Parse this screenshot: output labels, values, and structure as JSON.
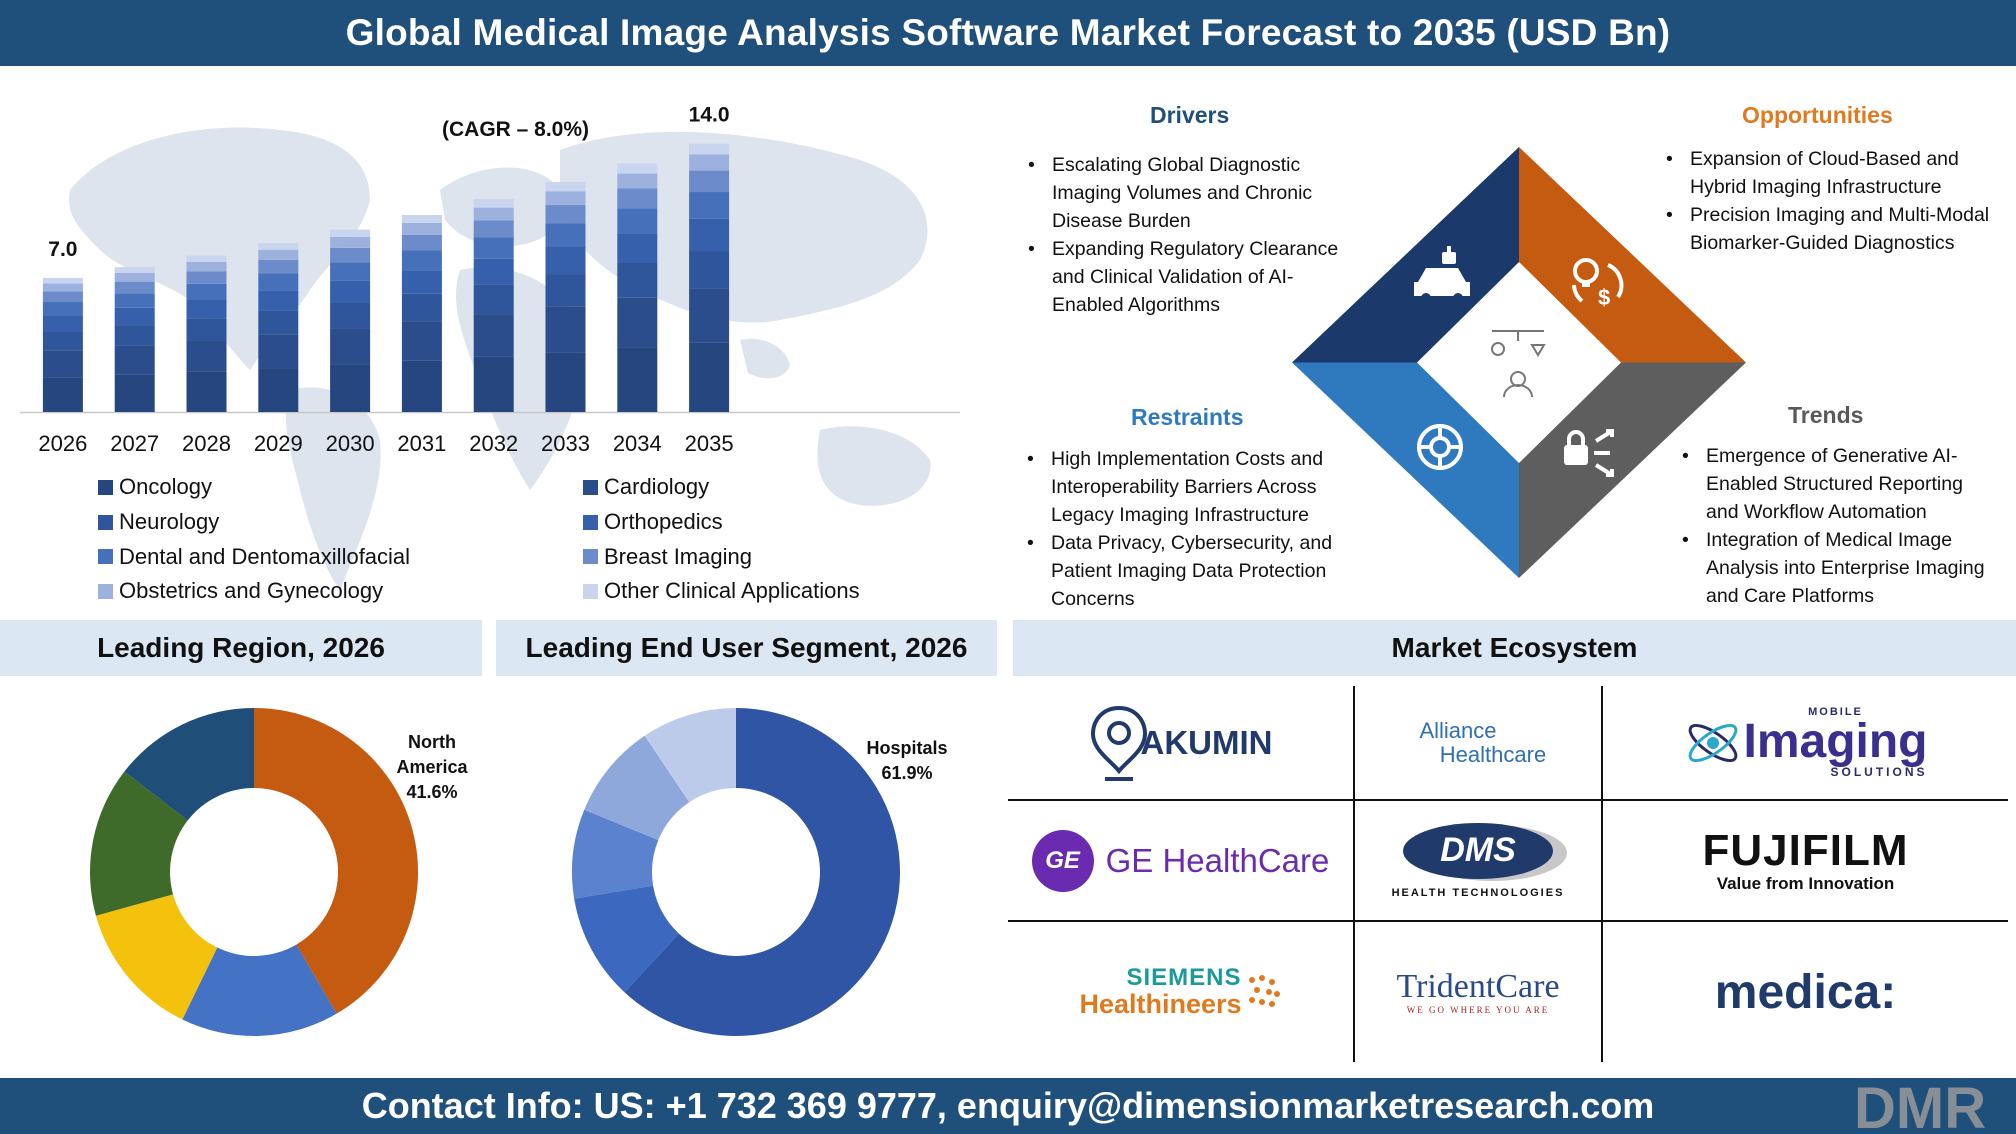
{
  "header": {
    "title": "Global Medical Image Analysis Software Market Forecast to 2035 (USD Bn)"
  },
  "footer": {
    "contact": "Contact Info: US: +1 732 369 9777, enquiry@dimensionmarketresearch.com",
    "brand_logo": "DMR"
  },
  "colors": {
    "header_bg": "#1f4f7b",
    "band_bg": "#dbe7f3",
    "drivers": "#1f4f7b",
    "opportunities": "#e07a1f",
    "restraints": "#2f7abf",
    "trends": "#595959",
    "segments": [
      "#26467f",
      "#2b4d8c",
      "#2f559a",
      "#3760ac",
      "#4770bb",
      "#6b8bcb",
      "#9db1de",
      "#c9d4ee"
    ]
  },
  "chart_data": [
    {
      "type": "bar",
      "stacked": true,
      "title": "(CAGR – 8.0%)",
      "categories": [
        "2026",
        "2027",
        "2028",
        "2029",
        "2030",
        "2031",
        "2032",
        "2033",
        "2034",
        "2035"
      ],
      "totals": [
        7.0,
        7.56,
        8.16,
        8.82,
        9.52,
        10.28,
        11.11,
        12.0,
        12.96,
        14.0
      ],
      "data_labels": [
        {
          "category": "2026",
          "text": "7.0"
        },
        {
          "category": "2035",
          "text": "14.0"
        }
      ],
      "series_shares": [
        0.26,
        0.2,
        0.14,
        0.12,
        0.1,
        0.08,
        0.06,
        0.04
      ],
      "series": [
        {
          "name": "Oncology",
          "color": "#26467f"
        },
        {
          "name": "Cardiology",
          "color": "#2b4d8c"
        },
        {
          "name": "Neurology",
          "color": "#2f559a"
        },
        {
          "name": "Orthopedics",
          "color": "#3760ac"
        },
        {
          "name": "Dental and Dentomaxillofacial",
          "color": "#4770bb"
        },
        {
          "name": "Breast Imaging",
          "color": "#6b8bcb"
        },
        {
          "name": "Obstetrics and Gynecology",
          "color": "#9db1de"
        },
        {
          "name": "Other Clinical Applications",
          "color": "#c9d4ee"
        }
      ],
      "ylim": [
        0,
        15.5
      ],
      "grid": false
    },
    {
      "type": "pie",
      "donut": true,
      "title": "Leading Region, 2026",
      "slices": [
        {
          "label": "North America",
          "value": 41.6,
          "color": "#c55a11",
          "label_text": "North America",
          "value_text": "41.6%"
        },
        {
          "label": "",
          "value": 15.6,
          "color": "#4472c4"
        },
        {
          "label": "",
          "value": 13.5,
          "color": "#f4c20d"
        },
        {
          "label": "",
          "value": 14.8,
          "color": "#3f6b2a"
        },
        {
          "label": "",
          "value": 14.5,
          "color": "#1f4e79"
        }
      ]
    },
    {
      "type": "pie",
      "donut": true,
      "title": "Leading End User Segment, 2026",
      "slices": [
        {
          "label": "Hospitals",
          "value": 61.9,
          "color": "#2f55a4",
          "label_text": "Hospitals",
          "value_text": "61.9%"
        },
        {
          "label": "",
          "value": 10.5,
          "color": "#3d68c0"
        },
        {
          "label": "",
          "value": 8.8,
          "color": "#5a82cf"
        },
        {
          "label": "",
          "value": 9.4,
          "color": "#8ea8dc"
        },
        {
          "label": "",
          "value": 9.4,
          "color": "#bccbea"
        }
      ]
    }
  ],
  "legend": {
    "items": [
      {
        "label": "Oncology",
        "color": "#26467f"
      },
      {
        "label": "Neurology",
        "color": "#2f559a"
      },
      {
        "label": "Dental and Dentomaxillofacial",
        "color": "#4770bb"
      },
      {
        "label": "Obstetrics and Gynecology",
        "color": "#9db1de"
      },
      {
        "label": "Cardiology",
        "color": "#2b4d8c"
      },
      {
        "label": "Orthopedics",
        "color": "#3760ac"
      },
      {
        "label": "Breast Imaging",
        "color": "#6b8bcb"
      },
      {
        "label": "Other Clinical Applications",
        "color": "#c9d4ee"
      }
    ]
  },
  "drivers": {
    "title": "Drivers",
    "items": [
      "Escalating Global Diagnostic Imaging Volumes and Chronic Disease Burden",
      "Expanding Regulatory Clearance and Clinical Validation of AI-Enabled Algorithms"
    ]
  },
  "opportunities": {
    "title": "Opportunities",
    "items": [
      "Expansion of Cloud-Based and Hybrid Imaging Infrastructure",
      "Precision Imaging and Multi-Modal Biomarker-Guided Diagnostics"
    ]
  },
  "restraints": {
    "title": "Restraints",
    "items": [
      "High Implementation Costs and Interoperability Barriers Across Legacy Imaging Infrastructure",
      "Data Privacy, Cybersecurity, and Patient Imaging Data Protection Concerns"
    ]
  },
  "trends": {
    "title": "Trends",
    "items": [
      "Emergence of Generative AI-Enabled Structured Reporting and Workflow Automation",
      "Integration of Medical Image Analysis into Enterprise Imaging and Care Platforms"
    ]
  },
  "diamond_icons": [
    "robot-car-icon",
    "bulb-dollar-icon",
    "network-gear-icon",
    "lock-arrows-icon",
    "lab-person-icon"
  ],
  "sections": {
    "region": "Leading Region, 2026",
    "end_user": "Leading End User Segment, 2026",
    "ecosystem": "Market Ecosystem"
  },
  "ecosystem": {
    "akumin": "AKUMIN",
    "alliance_1": "Alliance",
    "alliance_2": "Healthcare",
    "mobile_top": "MOBILE",
    "mobile_main": "Imaging",
    "mobile_bottom": "SOLUTIONS",
    "ge_badge": "GE",
    "ge_text": "GE HealthCare",
    "dms": "DMS",
    "dms_sub": "HEALTH TECHNOLOGIES",
    "fuji": "FUJIFILM",
    "fuji_sub": "Value from Innovation",
    "siemens_1": "SIEMENS",
    "siemens_2": "Healthineers",
    "trident": "TridentCare",
    "trident_sub": "WE GO WHERE YOU ARE",
    "medica": "medica:"
  }
}
